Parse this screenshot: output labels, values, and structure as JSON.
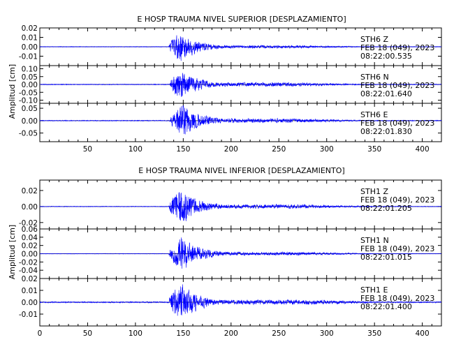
{
  "chart_data": [
    {
      "type": "line",
      "title": "E HOSP TRAUMA NIVEL SUPERIOR [DESPLAZAMIENTO]",
      "ylabel": "Amplitud [cm]",
      "xlabel": "",
      "xlim": [
        0,
        420
      ],
      "x_ticks": [
        50,
        100,
        150,
        200,
        250,
        300,
        350,
        400
      ],
      "grid": false,
      "channels": [
        {
          "station": "STH6",
          "component": "Z",
          "date": "FEB 18 (049), 2023",
          "time": "08:22:00.535",
          "ylim": [
            -0.02,
            0.02
          ],
          "y_ticks": [
            0.02,
            0.01,
            0.0,
            -0.01
          ],
          "y_tick_labels": [
            "0.02",
            "0.01",
            "0.00",
            "-0.01"
          ],
          "envelope": {
            "pre_event_amplitude": 0.0004,
            "onset_x": 135,
            "peak_x": 147,
            "peak_amplitude": 0.018,
            "coda_end_x": 260,
            "coda_amplitude": 0.0015
          }
        },
        {
          "station": "STH6",
          "component": "N",
          "date": "FEB 18 (049), 2023",
          "time": "08:22:01.640",
          "ylim": [
            -0.12,
            0.12
          ],
          "y_ticks": [
            0.1,
            0.05,
            0.0,
            -0.05,
            -0.1
          ],
          "y_tick_labels": [
            "0.10",
            "0.05",
            "0.00",
            "-0.05",
            "-0.10"
          ],
          "envelope": {
            "pre_event_amplitude": 0.003,
            "onset_x": 136,
            "peak_x": 148,
            "peak_amplitude": 0.11,
            "coda_end_x": 260,
            "coda_amplitude": 0.012
          }
        },
        {
          "station": "STH6",
          "component": "E",
          "date": "FEB 18 (049), 2023",
          "time": "08:22:01.830",
          "ylim": [
            -0.085,
            0.07
          ],
          "y_ticks": [
            0.05,
            0.0,
            -0.05
          ],
          "y_tick_labels": [
            "0.05",
            "0.00",
            "-0.05"
          ],
          "envelope": {
            "pre_event_amplitude": 0.002,
            "onset_x": 136,
            "peak_x": 150,
            "peak_amplitude": 0.075,
            "coda_end_x": 260,
            "coda_amplitude": 0.008
          }
        }
      ]
    },
    {
      "type": "line",
      "title": "E HOSP TRAUMA NIVEL INFERIOR [DESPLAZAMIENTO]",
      "ylabel": "Amplitud [cm]",
      "xlabel": "",
      "xlim": [
        0,
        420
      ],
      "x_ticks": [
        0,
        50,
        100,
        150,
        200,
        250,
        300,
        350,
        400
      ],
      "grid": false,
      "channels": [
        {
          "station": "STH1",
          "component": "Z",
          "date": "FEB 18 (049), 2023",
          "time": "08:22:01.205",
          "ylim": [
            -0.028,
            0.033
          ],
          "y_ticks": [
            0.02,
            0.0,
            -0.02
          ],
          "y_tick_labels": [
            "0.02",
            "0.00",
            "-0.02"
          ],
          "envelope": {
            "pre_event_amplitude": 0.0005,
            "onset_x": 135,
            "peak_x": 146,
            "peak_amplitude": 0.028,
            "coda_end_x": 270,
            "coda_amplitude": 0.0025
          }
        },
        {
          "station": "STH1",
          "component": "N",
          "date": "FEB 18 (049), 2023",
          "time": "08:22:01.015",
          "ylim": [
            -0.06,
            0.06
          ],
          "y_ticks": [
            0.06,
            0.04,
            0.02,
            0.0,
            -0.02,
            -0.04
          ],
          "y_tick_labels": [
            "0.06",
            "0.04",
            "0.02",
            "0.00",
            "-0.02",
            "-0.04"
          ],
          "envelope": {
            "pre_event_amplitude": 0.0008,
            "onset_x": 135,
            "peak_x": 148,
            "peak_amplitude": 0.05,
            "coda_end_x": 270,
            "coda_amplitude": 0.004
          }
        },
        {
          "station": "STH1",
          "component": "E",
          "date": "FEB 18 (049), 2023",
          "time": "08:22:01.400",
          "ylim": [
            -0.02,
            0.02
          ],
          "y_ticks": [
            0.02,
            0.01,
            0.0,
            -0.01
          ],
          "y_tick_labels": [
            "0.02",
            "0.01",
            "0.00",
            "-0.01"
          ],
          "envelope": {
            "pre_event_amplitude": 0.0006,
            "onset_x": 135,
            "peak_x": 147,
            "peak_amplitude": 0.019,
            "coda_end_x": 280,
            "coda_amplitude": 0.0018
          }
        }
      ]
    }
  ],
  "colors": {
    "trace": "#0000ff",
    "axis": "#000000",
    "background": "#ffffff"
  }
}
